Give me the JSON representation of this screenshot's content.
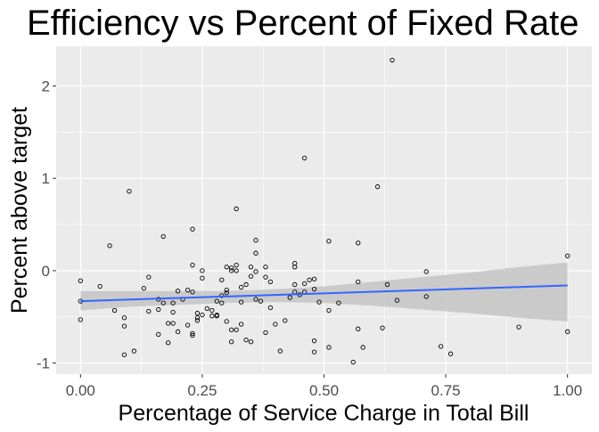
{
  "chart_data": {
    "type": "scatter",
    "title": "Efficiency vs Percent of Fixed Rate",
    "xlabel": "Percentage of Service Charge in Total Bill",
    "ylabel": "Percent above target",
    "xlim": [
      -0.05,
      1.05
    ],
    "ylim": [
      -1.12,
      2.43
    ],
    "x_ticks": [
      0.0,
      0.25,
      0.5,
      0.75,
      1.0
    ],
    "x_tick_labels": [
      "0.00",
      "0.25",
      "0.50",
      "0.75",
      "1.00"
    ],
    "y_ticks": [
      -1,
      0,
      1,
      2
    ],
    "y_tick_labels": [
      "-1",
      "0",
      "1",
      "2"
    ],
    "grid": true,
    "legend": "none",
    "colors": {
      "panel_background": "#ebebeb",
      "grid_line": "#ffffff",
      "point_stroke": "#000000",
      "fit_line": "#3366ff",
      "confidence_band": "#c4c4c4"
    },
    "points": [
      {
        "x": 0.0,
        "y": -0.11
      },
      {
        "x": 0.0,
        "y": -0.33
      },
      {
        "x": 0.0,
        "y": -0.53
      },
      {
        "x": 0.04,
        "y": -0.17
      },
      {
        "x": 0.06,
        "y": 0.27
      },
      {
        "x": 0.07,
        "y": -0.43
      },
      {
        "x": 0.09,
        "y": -0.51
      },
      {
        "x": 0.09,
        "y": -0.6
      },
      {
        "x": 0.09,
        "y": -0.91
      },
      {
        "x": 0.1,
        "y": 0.86
      },
      {
        "x": 0.11,
        "y": -0.87
      },
      {
        "x": 0.13,
        "y": -0.19
      },
      {
        "x": 0.14,
        "y": -0.07
      },
      {
        "x": 0.14,
        "y": -0.44
      },
      {
        "x": 0.16,
        "y": -0.31
      },
      {
        "x": 0.16,
        "y": -0.42
      },
      {
        "x": 0.16,
        "y": -0.69
      },
      {
        "x": 0.17,
        "y": 0.37
      },
      {
        "x": 0.17,
        "y": -0.35
      },
      {
        "x": 0.18,
        "y": -0.57
      },
      {
        "x": 0.18,
        "y": -0.78
      },
      {
        "x": 0.19,
        "y": -0.35
      },
      {
        "x": 0.19,
        "y": -0.45
      },
      {
        "x": 0.19,
        "y": -0.57
      },
      {
        "x": 0.2,
        "y": -0.22
      },
      {
        "x": 0.2,
        "y": -0.66
      },
      {
        "x": 0.21,
        "y": -0.31
      },
      {
        "x": 0.22,
        "y": -0.21
      },
      {
        "x": 0.22,
        "y": -0.59
      },
      {
        "x": 0.23,
        "y": 0.45
      },
      {
        "x": 0.23,
        "y": 0.06
      },
      {
        "x": 0.23,
        "y": -0.23
      },
      {
        "x": 0.23,
        "y": -0.68
      },
      {
        "x": 0.23,
        "y": -0.7
      },
      {
        "x": 0.24,
        "y": -0.46
      },
      {
        "x": 0.24,
        "y": -0.51
      },
      {
        "x": 0.24,
        "y": -0.54
      },
      {
        "x": 0.25,
        "y": 0.0
      },
      {
        "x": 0.25,
        "y": -0.08
      },
      {
        "x": 0.25,
        "y": -0.48
      },
      {
        "x": 0.26,
        "y": -0.41
      },
      {
        "x": 0.27,
        "y": -0.43
      },
      {
        "x": 0.27,
        "y": -0.49
      },
      {
        "x": 0.28,
        "y": -0.33
      },
      {
        "x": 0.28,
        "y": -0.48
      },
      {
        "x": 0.28,
        "y": -0.49
      },
      {
        "x": 0.29,
        "y": -0.1
      },
      {
        "x": 0.29,
        "y": -0.27
      },
      {
        "x": 0.29,
        "y": -0.35
      },
      {
        "x": 0.3,
        "y": 0.04
      },
      {
        "x": 0.3,
        "y": -0.21
      },
      {
        "x": 0.3,
        "y": -0.24
      },
      {
        "x": 0.3,
        "y": -0.55
      },
      {
        "x": 0.31,
        "y": 0.03
      },
      {
        "x": 0.31,
        "y": 0.0
      },
      {
        "x": 0.31,
        "y": -0.64
      },
      {
        "x": 0.31,
        "y": -0.77
      },
      {
        "x": 0.32,
        "y": 0.67
      },
      {
        "x": 0.32,
        "y": 0.06
      },
      {
        "x": 0.32,
        "y": 0.0
      },
      {
        "x": 0.32,
        "y": -0.64
      },
      {
        "x": 0.33,
        "y": -0.18
      },
      {
        "x": 0.33,
        "y": -0.34
      },
      {
        "x": 0.33,
        "y": -0.58
      },
      {
        "x": 0.34,
        "y": -0.15
      },
      {
        "x": 0.34,
        "y": -0.75
      },
      {
        "x": 0.35,
        "y": 0.04
      },
      {
        "x": 0.35,
        "y": -0.06
      },
      {
        "x": 0.35,
        "y": -0.77
      },
      {
        "x": 0.36,
        "y": 0.33
      },
      {
        "x": 0.36,
        "y": 0.19
      },
      {
        "x": 0.36,
        "y": -0.01
      },
      {
        "x": 0.36,
        "y": -0.31
      },
      {
        "x": 0.37,
        "y": -0.33
      },
      {
        "x": 0.38,
        "y": 0.04
      },
      {
        "x": 0.38,
        "y": -0.07
      },
      {
        "x": 0.38,
        "y": -0.67
      },
      {
        "x": 0.39,
        "y": -0.12
      },
      {
        "x": 0.39,
        "y": -0.4
      },
      {
        "x": 0.4,
        "y": -0.58
      },
      {
        "x": 0.41,
        "y": -0.87
      },
      {
        "x": 0.42,
        "y": -0.54
      },
      {
        "x": 0.43,
        "y": -0.29
      },
      {
        "x": 0.44,
        "y": 0.08
      },
      {
        "x": 0.44,
        "y": 0.04
      },
      {
        "x": 0.44,
        "y": -0.15
      },
      {
        "x": 0.44,
        "y": -0.23
      },
      {
        "x": 0.45,
        "y": -0.26
      },
      {
        "x": 0.46,
        "y": 1.22
      },
      {
        "x": 0.46,
        "y": -0.14
      },
      {
        "x": 0.46,
        "y": -0.23
      },
      {
        "x": 0.47,
        "y": -0.1
      },
      {
        "x": 0.48,
        "y": -0.09
      },
      {
        "x": 0.48,
        "y": -0.2
      },
      {
        "x": 0.48,
        "y": -0.76
      },
      {
        "x": 0.48,
        "y": -0.88
      },
      {
        "x": 0.49,
        "y": -0.34
      },
      {
        "x": 0.51,
        "y": 0.32
      },
      {
        "x": 0.51,
        "y": -0.43
      },
      {
        "x": 0.51,
        "y": -0.83
      },
      {
        "x": 0.53,
        "y": -0.35
      },
      {
        "x": 0.56,
        "y": -0.99
      },
      {
        "x": 0.57,
        "y": 0.3
      },
      {
        "x": 0.57,
        "y": -0.12
      },
      {
        "x": 0.57,
        "y": -0.63
      },
      {
        "x": 0.58,
        "y": -0.83
      },
      {
        "x": 0.61,
        "y": 0.91
      },
      {
        "x": 0.62,
        "y": -0.62
      },
      {
        "x": 0.63,
        "y": -0.15
      },
      {
        "x": 0.64,
        "y": 2.28
      },
      {
        "x": 0.65,
        "y": -0.32
      },
      {
        "x": 0.71,
        "y": -0.01
      },
      {
        "x": 0.71,
        "y": -0.28
      },
      {
        "x": 0.74,
        "y": -0.82
      },
      {
        "x": 0.76,
        "y": -0.9
      },
      {
        "x": 0.9,
        "y": -0.61
      },
      {
        "x": 1.0,
        "y": 0.16
      },
      {
        "x": 1.0,
        "y": -0.66
      }
    ],
    "fit_line": {
      "x": [
        0.0,
        1.0
      ],
      "y": [
        -0.33,
        -0.16
      ]
    },
    "confidence_band": [
      {
        "x": 0.0,
        "lower": -0.43,
        "upper": -0.22
      },
      {
        "x": 0.1,
        "lower": -0.39,
        "upper": -0.22
      },
      {
        "x": 0.2,
        "lower": -0.37,
        "upper": -0.22
      },
      {
        "x": 0.3,
        "lower": -0.35,
        "upper": -0.22
      },
      {
        "x": 0.4,
        "lower": -0.34,
        "upper": -0.2
      },
      {
        "x": 0.5,
        "lower": -0.35,
        "upper": -0.17
      },
      {
        "x": 0.6,
        "lower": -0.38,
        "upper": -0.12
      },
      {
        "x": 0.7,
        "lower": -0.42,
        "upper": -0.07
      },
      {
        "x": 0.8,
        "lower": -0.46,
        "upper": -0.02
      },
      {
        "x": 0.9,
        "lower": -0.51,
        "upper": 0.04
      },
      {
        "x": 1.0,
        "lower": -0.55,
        "upper": 0.09
      }
    ]
  }
}
